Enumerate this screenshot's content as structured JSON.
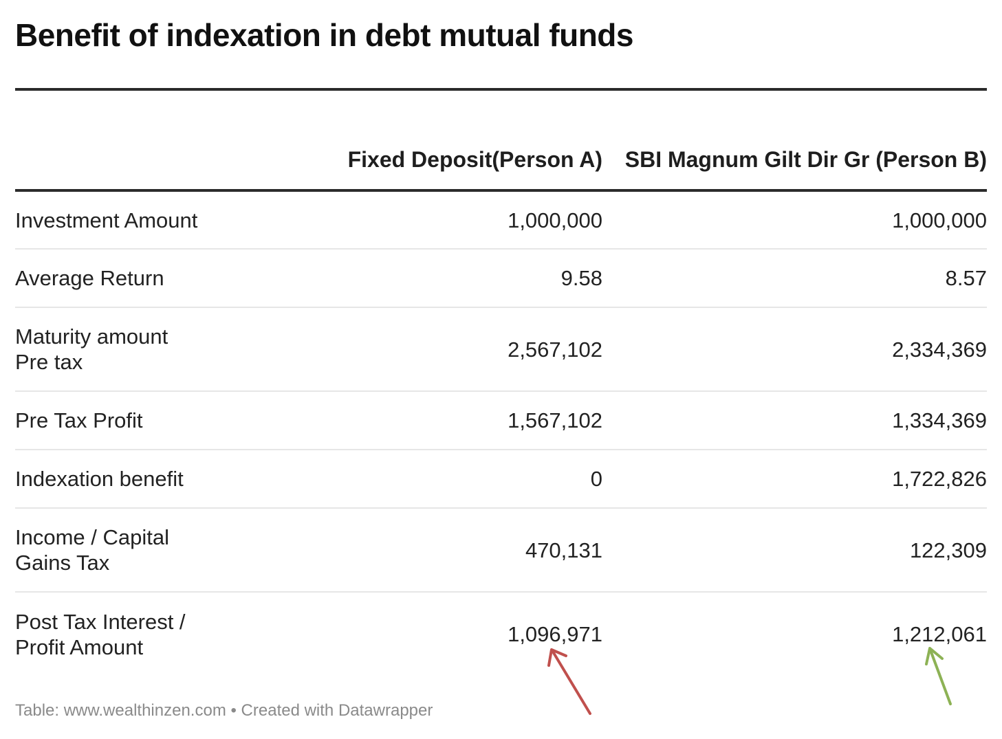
{
  "chart_data": {
    "type": "table",
    "title": "Benefit of indexation in debt mutual funds",
    "columns": [
      "",
      "Fixed Deposit(Person A)",
      "SBI Magnum Gilt Dir Gr (Person B)"
    ],
    "rows": [
      {
        "label": "Investment Amount",
        "a": "1,000,000",
        "b": "1,000,000"
      },
      {
        "label": "Average Return",
        "a": "9.58",
        "b": "8.57"
      },
      {
        "label": "Maturity amount\nPre tax",
        "a": "2,567,102",
        "b": "2,334,369"
      },
      {
        "label": "Pre Tax Profit",
        "a": "1,567,102",
        "b": "1,334,369"
      },
      {
        "label": "Indexation benefit",
        "a": "0",
        "b": "1,722,826"
      },
      {
        "label": "Income / Capital\nGains Tax",
        "a": "470,131",
        "b": "122,309"
      },
      {
        "label": "Post Tax Interest /\nProfit Amount",
        "a": "1,096,971",
        "b": "1,212,061"
      }
    ],
    "footer": "Table: www.wealthinzen.com • Created with Datawrapper",
    "annotations": [
      {
        "shape": "arrow",
        "points_to": "1,096,971",
        "color": "#c0504d"
      },
      {
        "shape": "arrow",
        "points_to": "1,212,061",
        "color": "#8db255"
      }
    ]
  }
}
